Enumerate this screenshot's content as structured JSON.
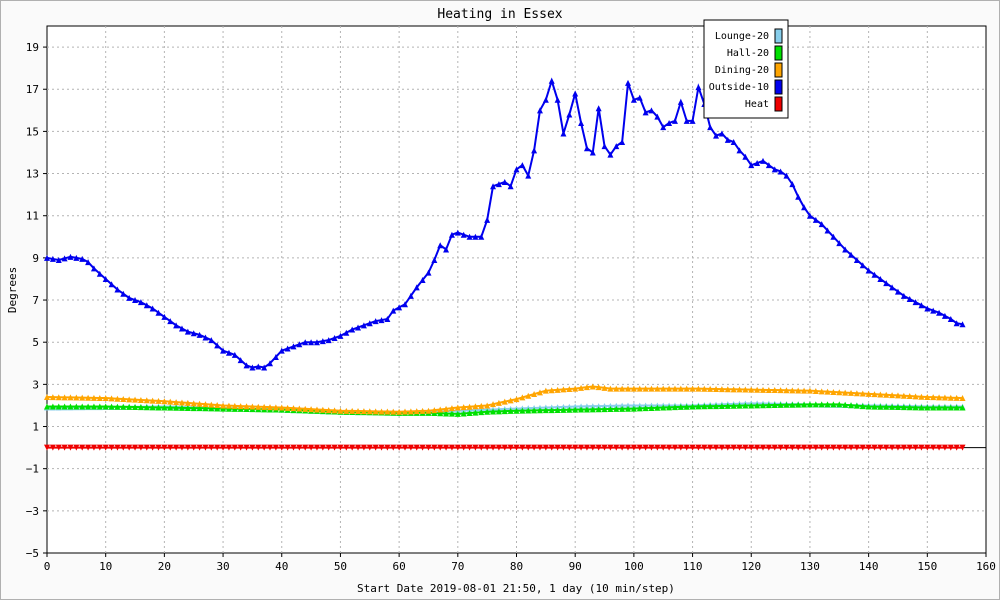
{
  "chart_data": {
    "type": "line",
    "title": "Heating in Essex",
    "xlabel": "Start Date 2019-08-01 21:50, 1 day (10 min/step)",
    "ylabel": "Degrees",
    "xlim": [
      0,
      160
    ],
    "ylim": [
      -5,
      20
    ],
    "xticks": [
      0,
      10,
      20,
      30,
      40,
      50,
      60,
      70,
      80,
      90,
      100,
      110,
      120,
      130,
      140,
      150,
      160
    ],
    "yticks": [
      -5,
      -3,
      -1,
      1,
      3,
      5,
      7,
      9,
      11,
      13,
      15,
      17,
      19
    ],
    "grid": true,
    "legend_position": "top-right",
    "series": [
      {
        "name": "Lounge-20",
        "color": "#87ceeb",
        "marker": "up-triangle",
        "points": [
          [
            0,
            1.9
          ],
          [
            20,
            1.95
          ],
          [
            40,
            1.8
          ],
          [
            50,
            1.7
          ],
          [
            60,
            1.65
          ],
          [
            70,
            1.75
          ],
          [
            80,
            1.85
          ],
          [
            90,
            1.95
          ],
          [
            100,
            2.0
          ],
          [
            110,
            2.0
          ],
          [
            120,
            2.1
          ],
          [
            130,
            2.05
          ],
          [
            140,
            2.0
          ],
          [
            150,
            1.95
          ],
          [
            156,
            1.95
          ]
        ]
      },
      {
        "name": "Hall-20",
        "color": "#00e000",
        "marker": "up-triangle",
        "points": [
          [
            0,
            1.95
          ],
          [
            10,
            1.95
          ],
          [
            20,
            1.9
          ],
          [
            30,
            1.85
          ],
          [
            40,
            1.8
          ],
          [
            50,
            1.7
          ],
          [
            60,
            1.65
          ],
          [
            65,
            1.65
          ],
          [
            70,
            1.6
          ],
          [
            75,
            1.7
          ],
          [
            80,
            1.75
          ],
          [
            90,
            1.8
          ],
          [
            100,
            1.85
          ],
          [
            110,
            1.95
          ],
          [
            120,
            2.0
          ],
          [
            130,
            2.05
          ],
          [
            135,
            2.05
          ],
          [
            140,
            1.95
          ],
          [
            150,
            1.9
          ],
          [
            156,
            1.9
          ]
        ]
      },
      {
        "name": "Dining-20",
        "color": "#ffa500",
        "marker": "up-triangle",
        "points": [
          [
            0,
            2.4
          ],
          [
            10,
            2.35
          ],
          [
            20,
            2.2
          ],
          [
            30,
            2.0
          ],
          [
            40,
            1.9
          ],
          [
            50,
            1.75
          ],
          [
            60,
            1.7
          ],
          [
            65,
            1.75
          ],
          [
            70,
            1.9
          ],
          [
            75,
            2.0
          ],
          [
            80,
            2.3
          ],
          [
            85,
            2.7
          ],
          [
            90,
            2.8
          ],
          [
            93,
            2.9
          ],
          [
            96,
            2.8
          ],
          [
            100,
            2.8
          ],
          [
            110,
            2.8
          ],
          [
            120,
            2.75
          ],
          [
            130,
            2.7
          ],
          [
            140,
            2.55
          ],
          [
            150,
            2.4
          ],
          [
            156,
            2.35
          ]
        ]
      },
      {
        "name": "Outside-10",
        "color": "#0000ee",
        "marker": "up-triangle",
        "points": [
          [
            0,
            9.0
          ],
          [
            2,
            8.9
          ],
          [
            4,
            9.05
          ],
          [
            6,
            8.95
          ],
          [
            7,
            8.8
          ],
          [
            8,
            8.5
          ],
          [
            10,
            8.0
          ],
          [
            12,
            7.5
          ],
          [
            14,
            7.1
          ],
          [
            16,
            6.9
          ],
          [
            18,
            6.6
          ],
          [
            20,
            6.2
          ],
          [
            22,
            5.8
          ],
          [
            24,
            5.5
          ],
          [
            26,
            5.35
          ],
          [
            28,
            5.1
          ],
          [
            30,
            4.6
          ],
          [
            32,
            4.4
          ],
          [
            34,
            3.9
          ],
          [
            35,
            3.8
          ],
          [
            36,
            3.85
          ],
          [
            37,
            3.8
          ],
          [
            38,
            4.0
          ],
          [
            40,
            4.6
          ],
          [
            42,
            4.8
          ],
          [
            44,
            5.0
          ],
          [
            46,
            5.0
          ],
          [
            48,
            5.1
          ],
          [
            50,
            5.3
          ],
          [
            52,
            5.6
          ],
          [
            54,
            5.8
          ],
          [
            56,
            6.0
          ],
          [
            58,
            6.1
          ],
          [
            59,
            6.5
          ],
          [
            61,
            6.8
          ],
          [
            63,
            7.6
          ],
          [
            65,
            8.3
          ],
          [
            66,
            8.9
          ],
          [
            67,
            9.6
          ],
          [
            68,
            9.4
          ],
          [
            69,
            10.1
          ],
          [
            70,
            10.2
          ],
          [
            72,
            10.0
          ],
          [
            74,
            10.0
          ],
          [
            75,
            10.8
          ],
          [
            76,
            12.4
          ],
          [
            78,
            12.6
          ],
          [
            79,
            12.4
          ],
          [
            80,
            13.2
          ],
          [
            81,
            13.4
          ],
          [
            82,
            12.9
          ],
          [
            83,
            14.1
          ],
          [
            84,
            16.0
          ],
          [
            85,
            16.5
          ],
          [
            86,
            17.4
          ],
          [
            87,
            16.5
          ],
          [
            88,
            14.9
          ],
          [
            89,
            15.8
          ],
          [
            90,
            16.8
          ],
          [
            91,
            15.4
          ],
          [
            92,
            14.2
          ],
          [
            93,
            14.0
          ],
          [
            94,
            16.1
          ],
          [
            95,
            14.3
          ],
          [
            96,
            13.9
          ],
          [
            97,
            14.3
          ],
          [
            98,
            14.5
          ],
          [
            99,
            17.3
          ],
          [
            100,
            16.5
          ],
          [
            101,
            16.6
          ],
          [
            102,
            15.9
          ],
          [
            103,
            16.0
          ],
          [
            104,
            15.7
          ],
          [
            105,
            15.2
          ],
          [
            106,
            15.4
          ],
          [
            107,
            15.5
          ],
          [
            108,
            16.4
          ],
          [
            109,
            15.5
          ],
          [
            110,
            15.5
          ],
          [
            111,
            17.1
          ],
          [
            112,
            16.3
          ],
          [
            113,
            15.2
          ],
          [
            114,
            14.8
          ],
          [
            115,
            14.9
          ],
          [
            116,
            14.6
          ],
          [
            117,
            14.5
          ],
          [
            118,
            14.1
          ],
          [
            119,
            13.8
          ],
          [
            120,
            13.4
          ],
          [
            121,
            13.5
          ],
          [
            122,
            13.6
          ],
          [
            123,
            13.4
          ],
          [
            124,
            13.2
          ],
          [
            125,
            13.1
          ],
          [
            126,
            12.9
          ],
          [
            127,
            12.5
          ],
          [
            128,
            11.9
          ],
          [
            129,
            11.4
          ],
          [
            130,
            11.0
          ],
          [
            132,
            10.6
          ],
          [
            134,
            10.0
          ],
          [
            136,
            9.4
          ],
          [
            138,
            8.9
          ],
          [
            140,
            8.4
          ],
          [
            142,
            8.0
          ],
          [
            144,
            7.6
          ],
          [
            146,
            7.2
          ],
          [
            148,
            6.9
          ],
          [
            150,
            6.6
          ],
          [
            152,
            6.4
          ],
          [
            154,
            6.1
          ],
          [
            155,
            5.9
          ],
          [
            156,
            5.85
          ]
        ]
      },
      {
        "name": "Heat",
        "color": "#ee0000",
        "marker": "down-triangle",
        "points": [
          [
            0,
            0.0
          ],
          [
            156,
            0.0
          ]
        ]
      }
    ]
  }
}
